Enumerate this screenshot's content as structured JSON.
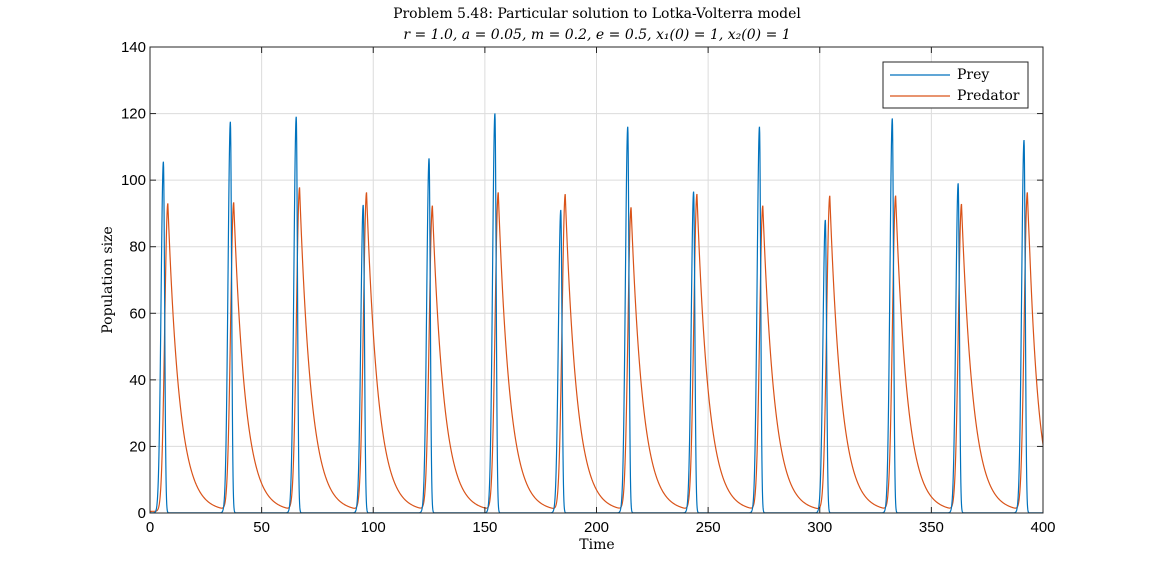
{
  "chart_data": {
    "type": "line",
    "title": "Problem 5.48: Particular solution to Lotka-Volterra model",
    "subtitle": "r = 1.0, a = 0.05, m = 0.2, e = 0.5, x₁(0) = 1, x₂(0) = 1",
    "xlabel": "Time",
    "ylabel": "Population size",
    "xlim": [
      0,
      400
    ],
    "ylim": [
      0,
      140
    ],
    "xticks": [
      0,
      50,
      100,
      150,
      200,
      250,
      300,
      350,
      400
    ],
    "yticks": [
      0,
      20,
      40,
      60,
      80,
      100,
      120,
      140
    ],
    "grid": true,
    "legend_position": "top-right",
    "series": [
      {
        "name": "Prey",
        "color": "#0072BD",
        "peaks": [
          {
            "t": 6.0,
            "y": 105.5
          },
          {
            "t": 36.0,
            "y": 117.5
          },
          {
            "t": 65.5,
            "y": 119.0
          },
          {
            "t": 95.5,
            "y": 92.5
          },
          {
            "t": 125.0,
            "y": 106.5
          },
          {
            "t": 154.5,
            "y": 120.0
          },
          {
            "t": 184.0,
            "y": 91.0
          },
          {
            "t": 214.0,
            "y": 116.0
          },
          {
            "t": 243.5,
            "y": 96.5
          },
          {
            "t": 273.0,
            "y": 116.0
          },
          {
            "t": 302.5,
            "y": 88.0
          },
          {
            "t": 332.5,
            "y": 118.5
          },
          {
            "t": 362.0,
            "y": 99.0
          },
          {
            "t": 391.5,
            "y": 112.0
          }
        ]
      },
      {
        "name": "Predator",
        "color": "#D95319",
        "peaks": [
          {
            "t": 8.0,
            "y": 92.5
          },
          {
            "t": 37.5,
            "y": 92.5
          },
          {
            "t": 67.0,
            "y": 97.0
          },
          {
            "t": 97.0,
            "y": 95.5
          },
          {
            "t": 126.5,
            "y": 91.5
          },
          {
            "t": 156.0,
            "y": 95.5
          },
          {
            "t": 186.0,
            "y": 95.0
          },
          {
            "t": 215.5,
            "y": 91.0
          },
          {
            "t": 245.0,
            "y": 95.0
          },
          {
            "t": 274.5,
            "y": 91.5
          },
          {
            "t": 304.5,
            "y": 94.5
          },
          {
            "t": 334.0,
            "y": 94.5
          },
          {
            "t": 363.5,
            "y": 92.0
          },
          {
            "t": 393.0,
            "y": 95.5
          }
        ],
        "end_value": 20.5
      }
    ]
  }
}
